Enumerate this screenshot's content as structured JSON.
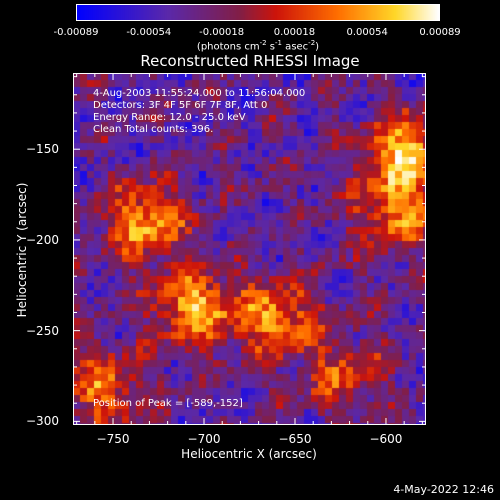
{
  "chart_data": {
    "type": "heatmap",
    "title": "Reconstructed RHESSI Image",
    "xlabel": "Heliocentric X (arcsec)",
    "ylabel": "Heliocentric Y (arcsec)",
    "xlim": [
      -772,
      -578
    ],
    "ylim": [
      -302,
      -108
    ],
    "xticks": [
      -750,
      -700,
      -650,
      -600
    ],
    "yticks": [
      -150,
      -200,
      -250,
      -300
    ],
    "colorbar": {
      "ticks": [
        "-0.00089",
        "-0.00054",
        "-0.00018",
        "0.00018",
        "0.00054",
        "0.00089"
      ],
      "range": [
        -0.00089,
        0.00089
      ],
      "label": "(photons cm-2 s-1 asec-2)"
    },
    "peak": {
      "x": -589,
      "y": -152
    },
    "bright_regions": [
      {
        "x": -705,
        "y": -237,
        "relative_value": 0.95
      },
      {
        "x": -732,
        "y": -190,
        "relative_value": 0.9
      },
      {
        "x": -660,
        "y": -243,
        "relative_value": 0.85
      },
      {
        "x": -589,
        "y": -152,
        "relative_value": 1.0
      },
      {
        "x": -595,
        "y": -185,
        "relative_value": 0.8
      },
      {
        "x": -755,
        "y": -282,
        "relative_value": 0.7
      },
      {
        "x": -623,
        "y": -275,
        "relative_value": 0.6
      }
    ]
  },
  "annotations": {
    "time_range": "4-Aug-2003 11:55:24.000 to 11:56:04.000",
    "detectors": "Detectors: 3F 4F 5F 6F 7F 8F, Att 0",
    "energy_range": "Energy Range: 12.0 - 25.0 keV",
    "method": "Clean    Total counts: 396.",
    "peak_position": "Position of Peak = [-589,-152]"
  },
  "timestamp": "4-May-2022 12:46"
}
